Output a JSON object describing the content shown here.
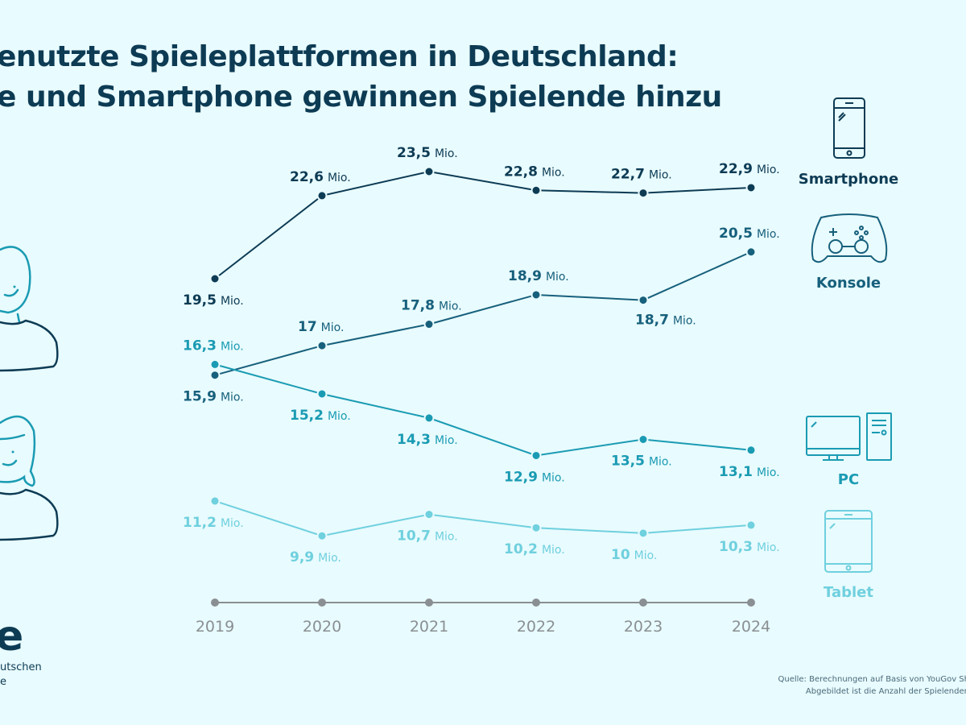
{
  "title": {
    "line1": "enutzte Spieleplattformen in Deutschland:",
    "line2": "e und Smartphone gewinnen Spielende hinzu"
  },
  "logo": {
    "mark": "e",
    "text_line1": "utschen",
    "text_line2": "e"
  },
  "source": {
    "line1": "Quelle: Berechnungen auf Basis von YouGov Sh",
    "line2": "Abgebildet ist die Anzahl der Spielenden"
  },
  "chart_data": {
    "type": "line",
    "x": [
      "2019",
      "2020",
      "2021",
      "2022",
      "2023",
      "2024"
    ],
    "unit": "Mio.",
    "series": [
      {
        "name": "Smartphone",
        "color": "#0d3b54",
        "icon": "smartphone-icon",
        "values": [
          19.5,
          22.6,
          23.5,
          22.8,
          22.7,
          22.9
        ],
        "labels": [
          "19,5",
          "22,6",
          "23,5",
          "22,8",
          "22,7",
          "22,9"
        ]
      },
      {
        "name": "Konsole",
        "color": "#17607c",
        "icon": "gamepad-icon",
        "values": [
          15.9,
          17,
          17.8,
          18.9,
          18.7,
          20.5
        ],
        "labels": [
          "15,9",
          "17",
          "17,8",
          "18,9",
          "18,7",
          "20,5"
        ]
      },
      {
        "name": "PC",
        "color": "#1a9bb3",
        "icon": "desktop-pc-icon",
        "values": [
          16.3,
          15.2,
          14.3,
          12.9,
          13.5,
          13.1
        ],
        "labels": [
          "16,3",
          "15,2",
          "14,3",
          "12,9",
          "13,5",
          "13,1"
        ]
      },
      {
        "name": "Tablet",
        "color": "#6fd0de",
        "icon": "tablet-icon",
        "values": [
          11.2,
          9.9,
          10.7,
          10.2,
          10,
          10.3
        ],
        "labels": [
          "11,2",
          "9,9",
          "10,7",
          "10,2",
          "10",
          "10,3"
        ]
      }
    ],
    "axis_color": "#8a8f93",
    "grid": false,
    "legend": "right"
  }
}
